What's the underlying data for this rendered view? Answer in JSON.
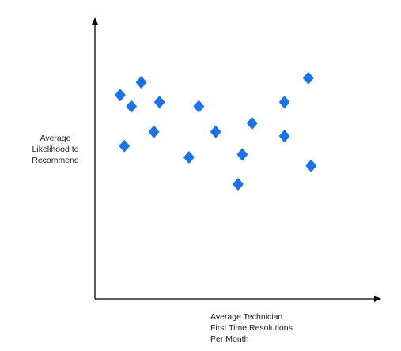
{
  "chart_data": {
    "type": "scatter",
    "title": "",
    "xlabel_lines": [
      "Average Technician",
      "First Time Resolutions",
      "Per Month"
    ],
    "ylabel_lines": [
      "Average",
      "Likelihood to",
      "Recommend"
    ],
    "grid": false,
    "legend": "none",
    "marker": "diamond",
    "marker_color": "#1a73e8",
    "axis_color": "#000000",
    "xlim": [
      0,
      100
    ],
    "ylim": [
      0,
      100
    ],
    "points": [
      {
        "x": 9.0,
        "y": 72.0
      },
      {
        "x": 10.5,
        "y": 54.0
      },
      {
        "x": 13.0,
        "y": 68.0
      },
      {
        "x": 16.5,
        "y": 76.5
      },
      {
        "x": 21.0,
        "y": 59.0
      },
      {
        "x": 23.0,
        "y": 69.5
      },
      {
        "x": 33.5,
        "y": 50.0
      },
      {
        "x": 37.0,
        "y": 68.0
      },
      {
        "x": 43.0,
        "y": 59.0
      },
      {
        "x": 51.0,
        "y": 40.5
      },
      {
        "x": 52.5,
        "y": 51.0
      },
      {
        "x": 56.0,
        "y": 62.0
      },
      {
        "x": 67.5,
        "y": 69.5
      },
      {
        "x": 67.5,
        "y": 57.5
      },
      {
        "x": 76.0,
        "y": 78.0
      },
      {
        "x": 77.0,
        "y": 47.0
      }
    ]
  }
}
